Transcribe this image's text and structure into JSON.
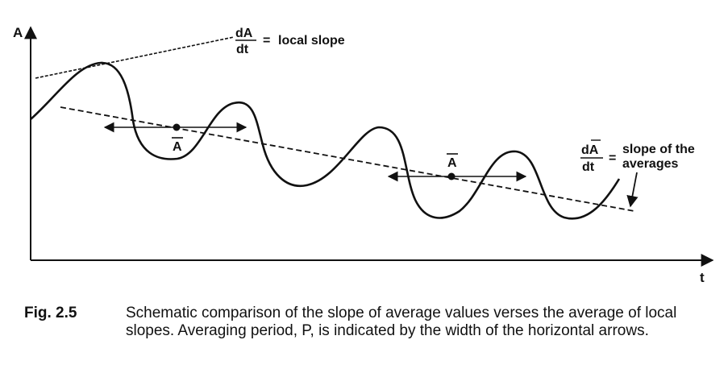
{
  "figure": {
    "y_axis_label": "A",
    "x_axis_label": "t",
    "local_slope_label": {
      "numerator": "dA",
      "denominator": "dt",
      "relation": "=",
      "text": "local slope"
    },
    "average_symbol": "A",
    "averages_slope_label": {
      "numerator": "dA",
      "denominator": "dt",
      "relation": "=",
      "line1": "slope of the",
      "line2": "averages"
    }
  },
  "caption": {
    "number": "Fig. 2.5",
    "text": "Schematic comparison of the slope of average values verses the average of local slopes.  Averaging period, P, is indicated by the width of the horizontal arrows."
  }
}
